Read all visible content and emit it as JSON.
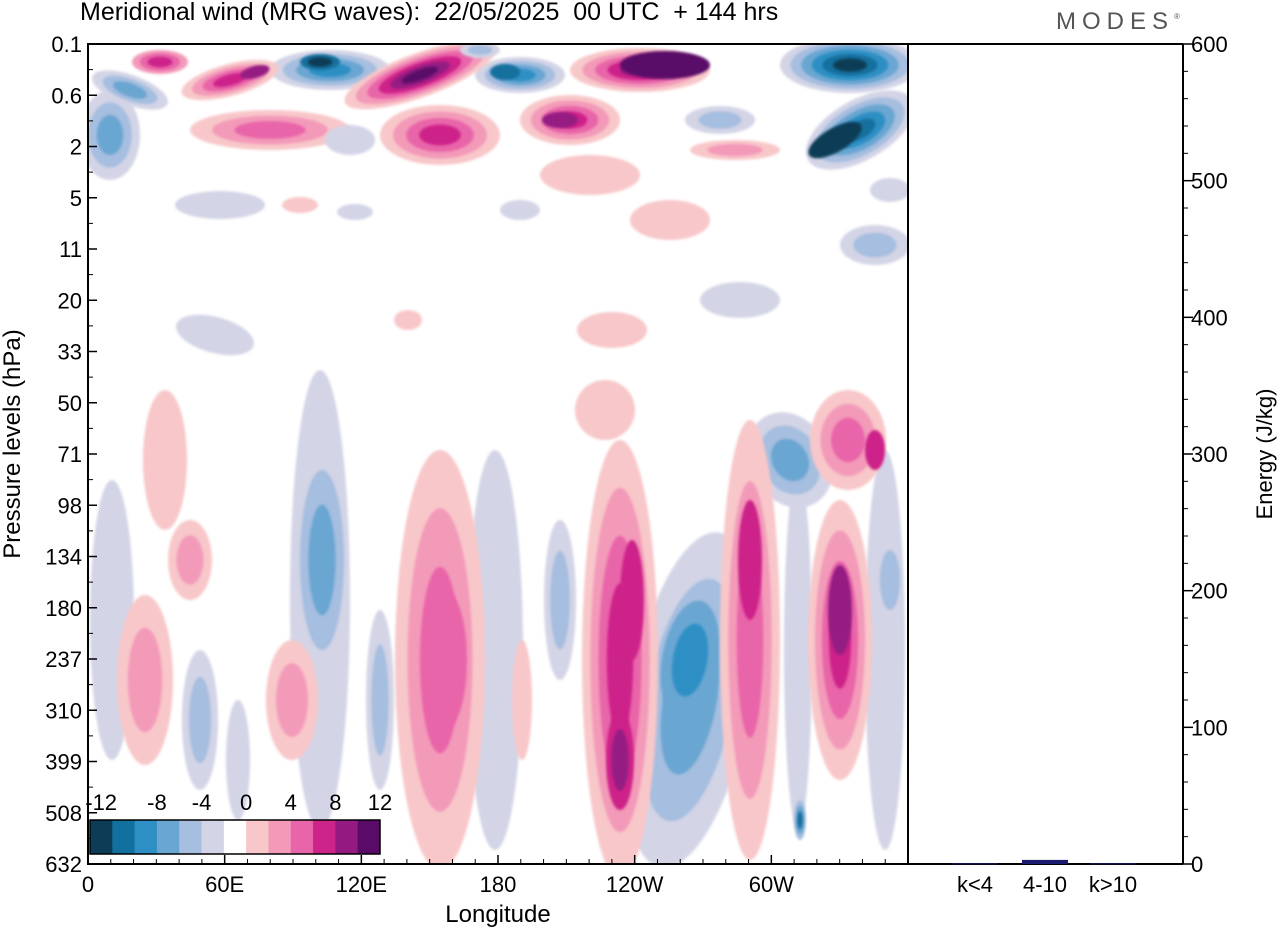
{
  "header": {
    "title": "Meridional wind (MRG waves):  22/05/2025  00 UTC  + 144 hrs",
    "brand": "MODES"
  },
  "colors": {
    "scale": [
      "#0d3d56",
      "#12709e",
      "#2d8fc4",
      "#6aa6d2",
      "#a6bedf",
      "#d3d4e6",
      "#ffffff",
      "#f8c7c9",
      "#f39ab9",
      "#e965a9",
      "#cd2489",
      "#941a82",
      "#5a0a68"
    ],
    "bar": "#1a1a6e"
  },
  "chart_data": [
    {
      "type": "heatmap",
      "title": "Meridional wind (MRG waves):  22/05/2025  00 UTC  + 144 hrs",
      "xlabel": "Longitude",
      "ylabel": "Pressure levels (hPa)",
      "x_ticks": [
        "0",
        "60E",
        "120E",
        "180",
        "120W",
        "60W"
      ],
      "x_values_deg": [
        0,
        60,
        120,
        180,
        240,
        300
      ],
      "x_range_deg": [
        0,
        360
      ],
      "y_ticks": [
        "0.1",
        "0.6",
        "2",
        "5",
        "11",
        "20",
        "33",
        "50",
        "71",
        "98",
        "134",
        "180",
        "237",
        "310",
        "399",
        "508",
        "632"
      ],
      "y_order": "top-to-bottom",
      "colorbar": {
        "labels": [
          "-12",
          "-8",
          "-4",
          "0",
          "4",
          "8",
          "12"
        ],
        "levels": [
          -12,
          -8,
          -4,
          0,
          4,
          8,
          12
        ]
      }
    },
    {
      "type": "bar",
      "ylabel": "Energy (J/kg)",
      "categories": [
        "k<4",
        "4-10",
        "k>10"
      ],
      "values": [
        0.5,
        3,
        0.5
      ],
      "ylim": [
        0,
        600
      ],
      "y_ticks": [
        "0",
        "100",
        "200",
        "300",
        "400",
        "500",
        "600"
      ],
      "y_tick_values": [
        0,
        100,
        200,
        300,
        400,
        500,
        600
      ]
    }
  ]
}
